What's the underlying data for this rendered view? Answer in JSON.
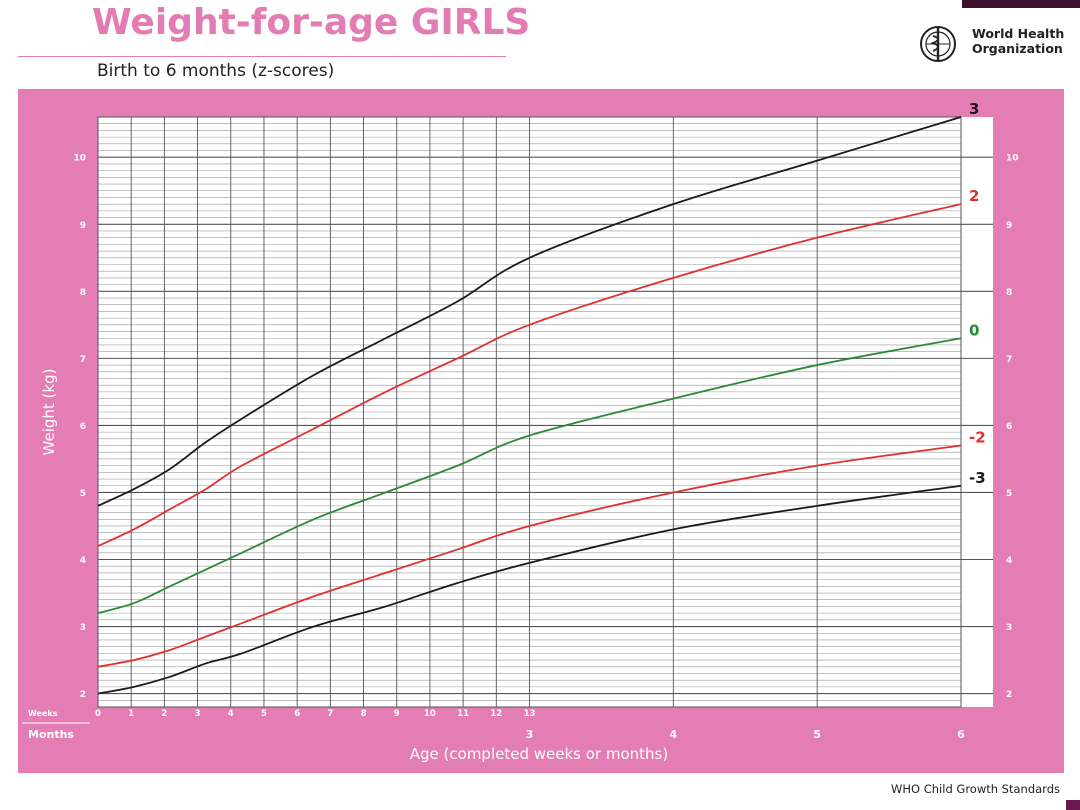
{
  "header": {
    "title": "Weight-for-age GIRLS",
    "subtitle": "Birth to 6 months (z-scores)",
    "org_line1": "World Health",
    "org_line2": "Organization",
    "footer": "WHO Child Growth Standards"
  },
  "colors": {
    "panel_pink": "#e47db3",
    "title_pink": "#e27cb2",
    "line_black": "#1a1a1a",
    "line_red": "#e03030",
    "line_green": "#2a8a3a",
    "label_red": "#e03030",
    "label_green": "#2a8a3a"
  },
  "chart_data": {
    "type": "line",
    "title": "Weight-for-age GIRLS",
    "subtitle": "Birth to 6 months (z-scores)",
    "xlabel": "Age (completed weeks or months)",
    "ylabel": "Weight (kg)",
    "ylim": [
      1.8,
      10.6
    ],
    "y_ticks": [
      2,
      3,
      4,
      5,
      6,
      7,
      8,
      9,
      10
    ],
    "weeks_label": "Weeks",
    "months_label": "Months",
    "week_ticks": [
      "0",
      "1",
      "2",
      "3",
      "4",
      "5",
      "6",
      "7",
      "8",
      "9",
      "10",
      "11",
      "12",
      "13"
    ],
    "month_ticks": [
      "3",
      "4",
      "5",
      "6"
    ],
    "grid": true,
    "x_age_months": [
      0,
      0.25,
      0.5,
      0.75,
      1,
      1.5,
      2,
      2.5,
      3,
      4,
      5,
      6
    ],
    "series": [
      {
        "name": "3",
        "color": "#1a1a1a",
        "values": [
          4.8,
          5.05,
          5.35,
          5.75,
          6.1,
          6.75,
          7.3,
          7.85,
          8.5,
          9.3,
          9.95,
          10.6
        ]
      },
      {
        "name": "2",
        "color": "#e03030",
        "values": [
          4.2,
          4.45,
          4.75,
          5.05,
          5.4,
          5.95,
          6.5,
          7.0,
          7.5,
          8.2,
          8.8,
          9.3
        ]
      },
      {
        "name": "0",
        "color": "#2a8a3a",
        "values": [
          3.2,
          3.35,
          3.6,
          3.85,
          4.1,
          4.6,
          5.0,
          5.4,
          5.85,
          6.4,
          6.9,
          7.3
        ]
      },
      {
        "name": "-2",
        "color": "#e03030",
        "values": [
          2.4,
          2.5,
          2.65,
          2.85,
          3.05,
          3.45,
          3.8,
          4.15,
          4.5,
          5.0,
          5.4,
          5.7
        ]
      },
      {
        "name": "-3",
        "color": "#1a1a1a",
        "values": [
          2.0,
          2.1,
          2.25,
          2.45,
          2.6,
          3.0,
          3.3,
          3.65,
          3.95,
          4.45,
          4.8,
          5.1
        ]
      }
    ]
  }
}
